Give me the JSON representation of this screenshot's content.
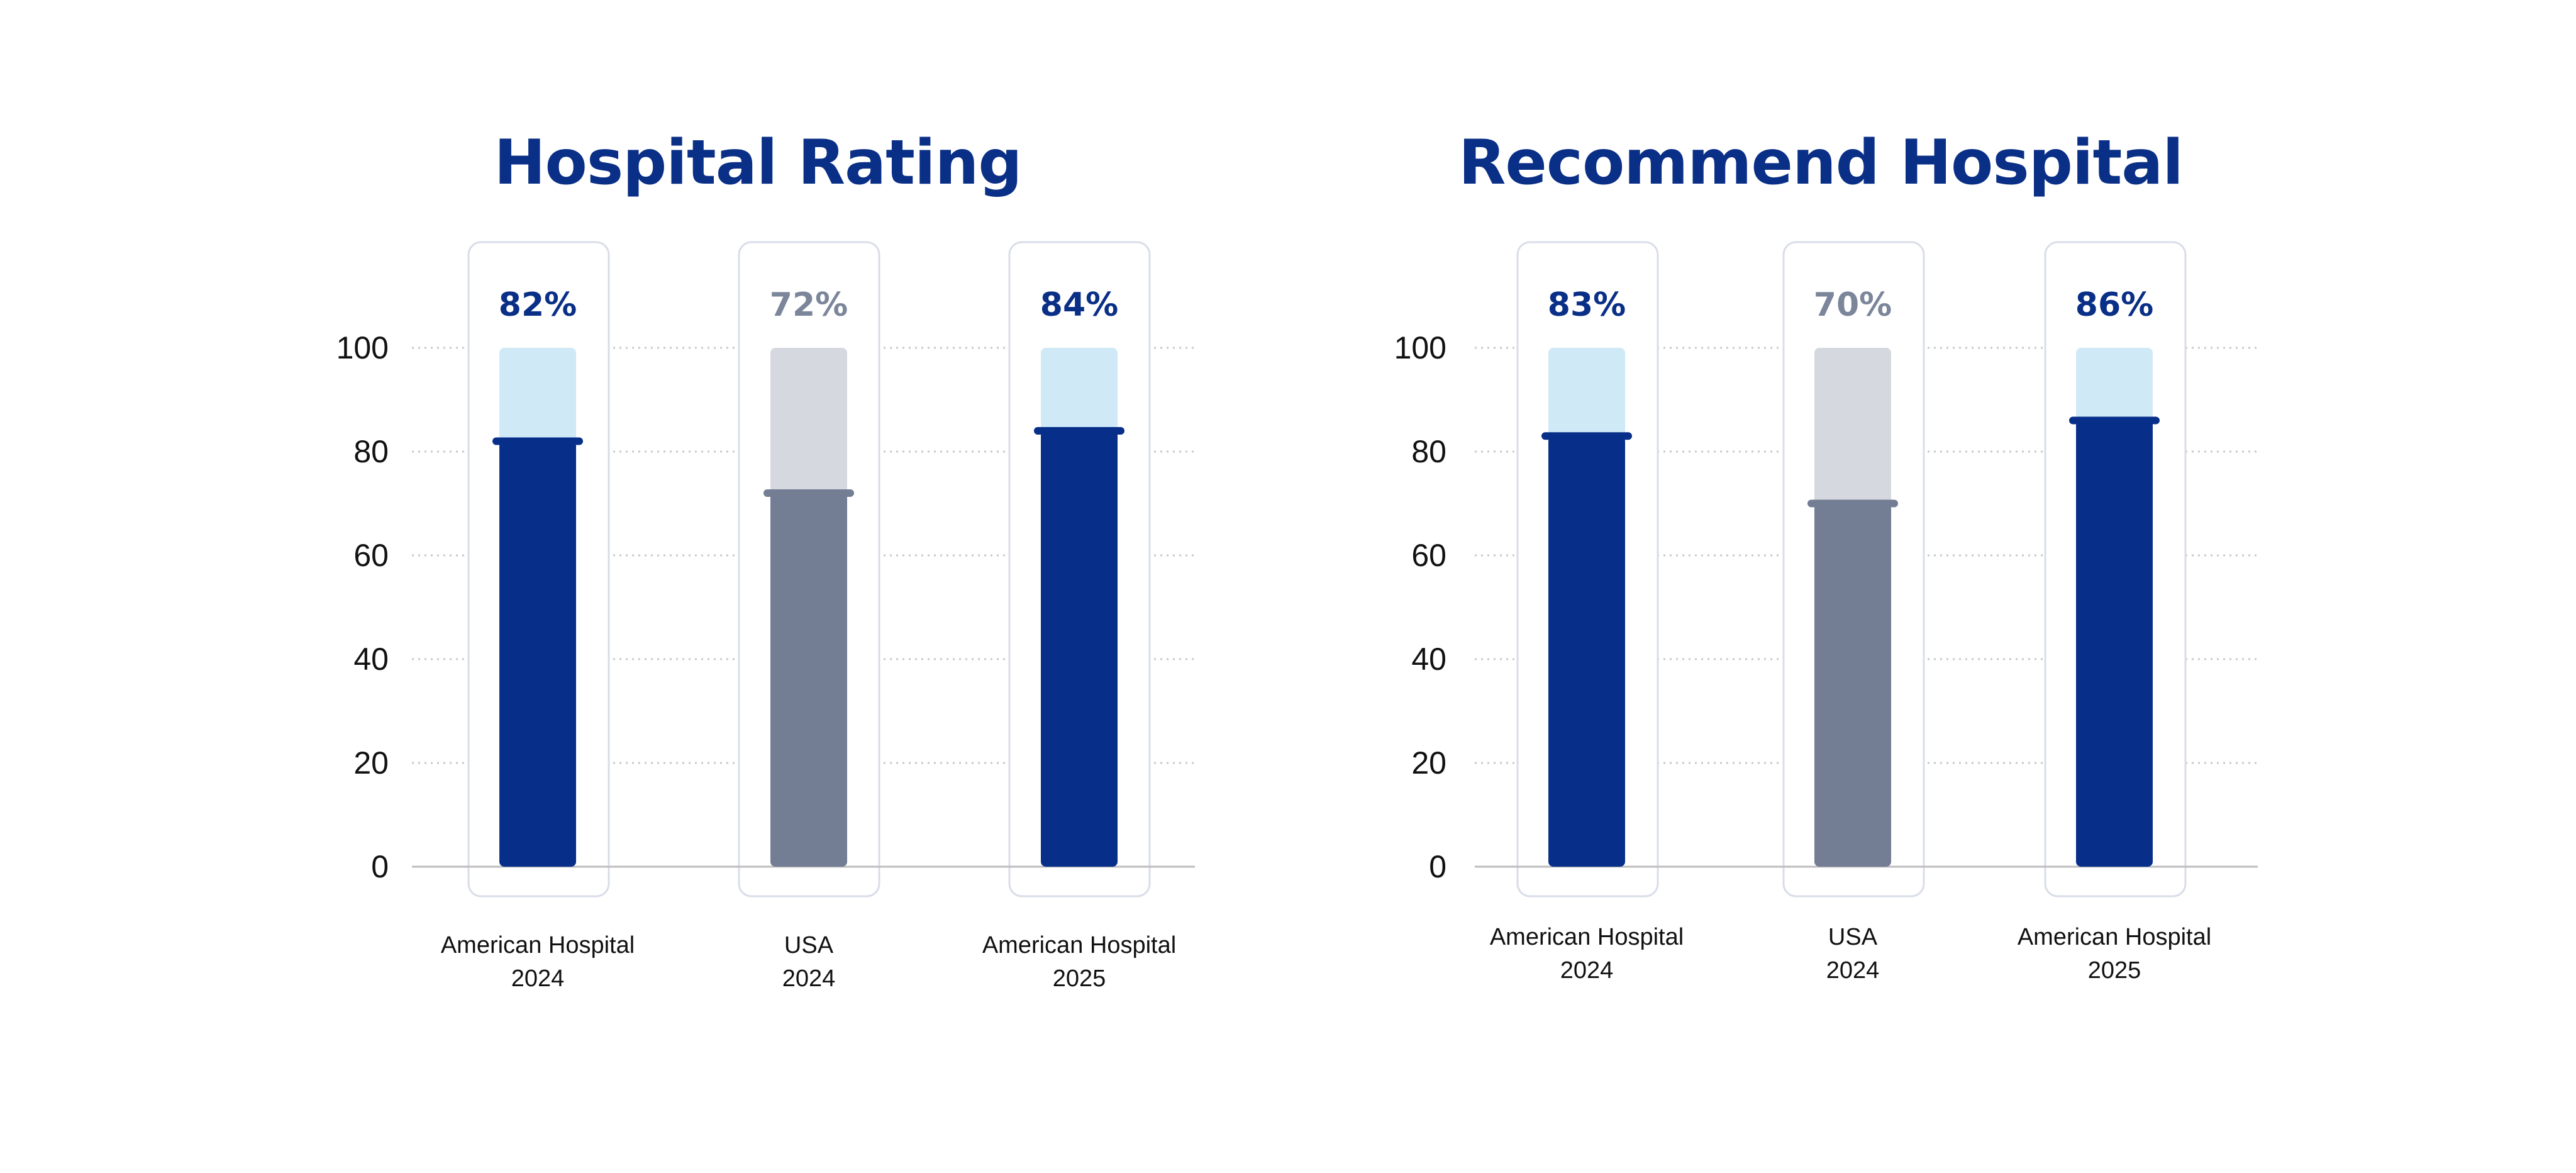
{
  "colors": {
    "title": "#0a2f87",
    "primary_bar": "#072f89",
    "primary_track": "#cfe9f7",
    "primary_label": "#0a2f87",
    "benchmark_bar": "#737d93",
    "benchmark_track": "#d5d8df",
    "benchmark_label": "#7c869b",
    "card_border": "#d9dde8",
    "grid": "#c8c8c8",
    "axis_line": "#bdbdbd",
    "tick_text": "#111111",
    "category_text": "#111111"
  },
  "chart_data": [
    {
      "type": "bar",
      "title": "Hospital Rating",
      "ylim": [
        0,
        100
      ],
      "yticks": [
        0,
        20,
        40,
        60,
        80,
        100
      ],
      "grid": true,
      "categories": [
        [
          "American Hospital",
          "2024"
        ],
        [
          "USA",
          "2024"
        ],
        [
          "American Hospital",
          "2025"
        ]
      ],
      "values": [
        82,
        72,
        84
      ],
      "value_labels": [
        "82%",
        "72%",
        "84%"
      ],
      "bar_styles": [
        "primary",
        "benchmark",
        "primary"
      ]
    },
    {
      "type": "bar",
      "title": "Recommend Hospital",
      "ylim": [
        0,
        100
      ],
      "yticks": [
        0,
        20,
        40,
        60,
        80,
        100
      ],
      "grid": true,
      "categories": [
        [
          "American Hospital",
          "2024"
        ],
        [
          "USA",
          "2024"
        ],
        [
          "American Hospital",
          "2025"
        ]
      ],
      "values": [
        83,
        70,
        86
      ],
      "value_labels": [
        "83%",
        "70%",
        "86%"
      ],
      "bar_styles": [
        "primary",
        "benchmark",
        "primary"
      ]
    }
  ]
}
